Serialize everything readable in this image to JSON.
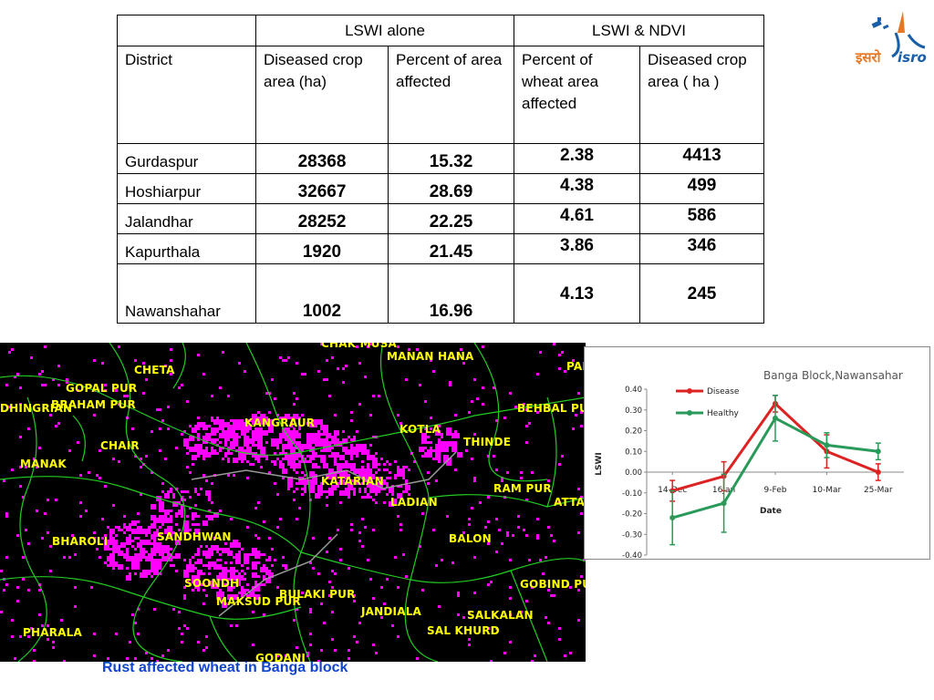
{
  "table": {
    "group_headers": [
      "LSWI alone",
      "LSWI & NDVI"
    ],
    "columns": [
      "District",
      "Diseased crop area (ha)",
      "Percent of area affected",
      "Percent of wheat area affected",
      "Diseased crop area ( ha )"
    ],
    "rows": [
      {
        "district": "Gurdaspur",
        "diseased_area": "28368",
        "percent_area": "15.32",
        "percent_wheat": "2.38",
        "diseased_area_ndvi": "4413"
      },
      {
        "district": "Hoshiarpur",
        "diseased_area": "32667",
        "percent_area": "28.69",
        "percent_wheat": "4.38",
        "diseased_area_ndvi": "499"
      },
      {
        "district": "Jalandhar",
        "diseased_area": "28252",
        "percent_area": "22.25",
        "percent_wheat": "4.61",
        "diseased_area_ndvi": "586"
      },
      {
        "district": "Kapurthala",
        "diseased_area": "1920",
        "percent_area": "21.45",
        "percent_wheat": "3.86",
        "diseased_area_ndvi": "346"
      },
      {
        "district": "Nawanshahar",
        "diseased_area": "1002",
        "percent_area": "16.96",
        "percent_wheat": "4.13",
        "diseased_area_ndvi": "245"
      }
    ]
  },
  "logo": {
    "hindi_text": "इसरो",
    "latin_text": "isro"
  },
  "map": {
    "caption": "Rust affected wheat in Banga block",
    "places": [
      "CHAK MUSA",
      "MANAN HANA",
      "PAI",
      "CHETA",
      "GOPAL PUR",
      "BRAHAM PUR",
      "DHINGRIAN",
      "KANGRAUR",
      "KOTLA",
      "BEHBAL PU",
      "THINDE",
      "CHAIR",
      "MANAK",
      "KATARIAN",
      "RAM PUR",
      "ATTA",
      "LADIAN",
      "BHAROLI",
      "SANDHWAN",
      "BALON",
      "SOONDH",
      "BULAKI PUR",
      "MAKSUD PUR",
      "GOBIND PUR",
      "JANDIALA",
      "SALKALAN",
      "SAL KHURD",
      "PHARALA",
      "GODANI"
    ],
    "colors": {
      "background": "#000000",
      "affected": "#ff00ff",
      "boundary": "#22cc22",
      "label": "#ffff00"
    }
  },
  "chart_data": {
    "type": "line",
    "title": "Banga Block,Nawansahar",
    "xlabel": "Date",
    "ylabel": "LSWI",
    "categories": [
      "14-Dec",
      "16Jan",
      "9-Feb",
      "10-Mar",
      "25-Mar"
    ],
    "ylim": [
      -0.4,
      0.4
    ],
    "yticks": [
      "0.40",
      "0.30",
      "0.20",
      "0.10",
      "0.00",
      "-0.10",
      "-0.20",
      "-0.30",
      "-0.40"
    ],
    "series": [
      {
        "name": "Disease",
        "color": "#dd2222",
        "values": [
          -0.09,
          -0.02,
          0.33,
          0.1,
          0.0
        ],
        "err": [
          0.05,
          0.07,
          0.04,
          0.08,
          0.04
        ]
      },
      {
        "name": "Healthy",
        "color": "#2a9a5a",
        "values": [
          -0.22,
          -0.15,
          0.26,
          0.13,
          0.1
        ],
        "err": [
          0.13,
          0.14,
          0.11,
          0.06,
          0.04
        ]
      }
    ],
    "legend": "top-left"
  }
}
